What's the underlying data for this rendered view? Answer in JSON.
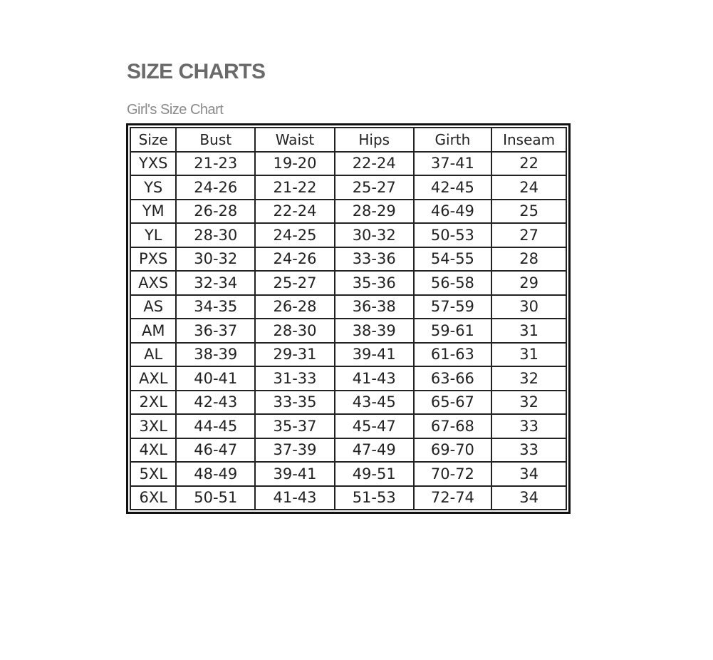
{
  "title": "SIZE CHARTS",
  "subtitle": "Girl's Size Chart",
  "table": {
    "headers": [
      "Size",
      "Bust",
      "Waist",
      "Hips",
      "Girth",
      "Inseam"
    ],
    "rows": [
      [
        "YXS",
        "21-23",
        "19-20",
        "22-24",
        "37-41",
        "22"
      ],
      [
        "YS",
        "24-26",
        "21-22",
        "25-27",
        "42-45",
        "24"
      ],
      [
        "YM",
        "26-28",
        "22-24",
        "28-29",
        "46-49",
        "25"
      ],
      [
        "YL",
        "28-30",
        "24-25",
        "30-32",
        "50-53",
        "27"
      ],
      [
        "PXS",
        "30-32",
        "24-26",
        "33-36",
        "54-55",
        "28"
      ],
      [
        "AXS",
        "32-34",
        "25-27",
        "35-36",
        "56-58",
        "29"
      ],
      [
        "AS",
        "34-35",
        "26-28",
        "36-38",
        "57-59",
        "30"
      ],
      [
        "AM",
        "36-37",
        "28-30",
        "38-39",
        "59-61",
        "31"
      ],
      [
        "AL",
        "38-39",
        "29-31",
        "39-41",
        "61-63",
        "31"
      ],
      [
        "AXL",
        "40-41",
        "31-33",
        "41-43",
        "63-66",
        "32"
      ],
      [
        "2XL",
        "42-43",
        "33-35",
        "43-45",
        "65-67",
        "32"
      ],
      [
        "3XL",
        "44-45",
        "35-37",
        "45-47",
        "67-68",
        "33"
      ],
      [
        "4XL",
        "46-47",
        "37-39",
        "47-49",
        "69-70",
        "33"
      ],
      [
        "5XL",
        "48-49",
        "39-41",
        "49-51",
        "70-72",
        "34"
      ],
      [
        "6XL",
        "50-51",
        "41-43",
        "51-53",
        "72-74",
        "34"
      ]
    ]
  }
}
